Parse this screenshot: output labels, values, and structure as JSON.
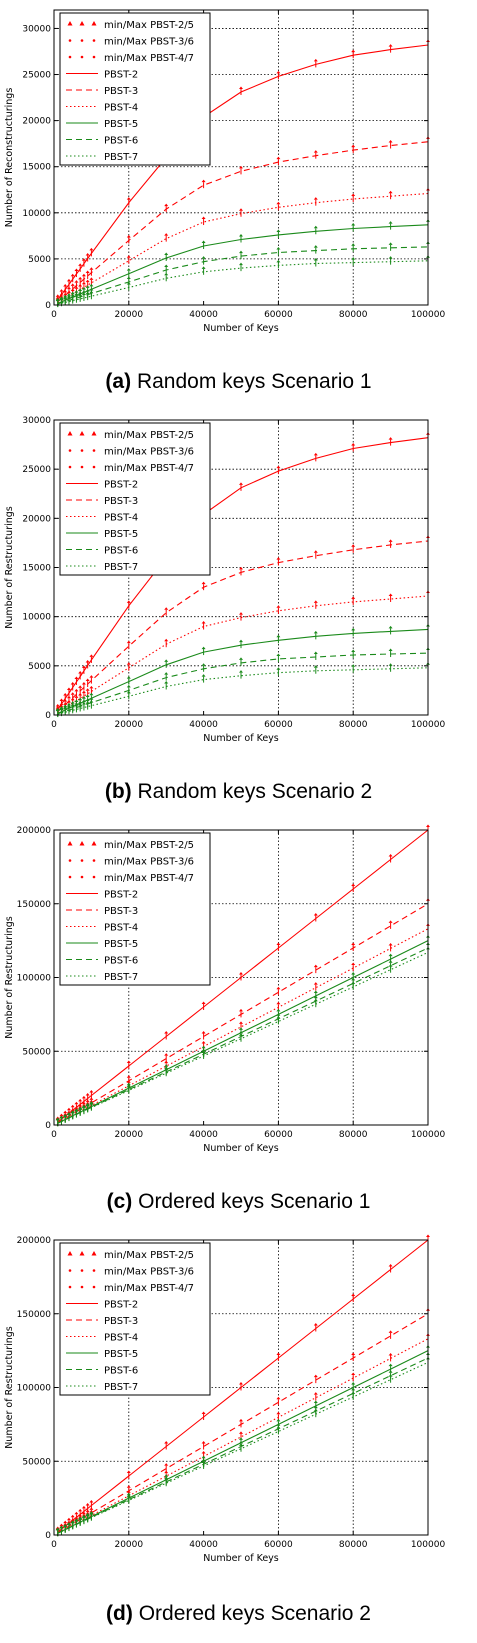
{
  "colors": {
    "red": "#ff0000",
    "green": "#1a8a1a",
    "grid": "#000000"
  },
  "chart_data": [
    {
      "type": "line",
      "caption_label": "(a)",
      "caption_text": "Random keys Scenario 1",
      "xlabel": "Number of Keys",
      "ylabel": "Number of Reconstructurings",
      "xlim": [
        0,
        100000
      ],
      "ylim": [
        0,
        32000
      ],
      "xticks": [
        0,
        20000,
        40000,
        60000,
        80000,
        100000
      ],
      "yticks": [
        0,
        5000,
        10000,
        15000,
        20000,
        25000,
        30000
      ],
      "grid": "dotted at 20000, 60000, 80000 (x) and every y tick",
      "legend_position": "top-left",
      "x": [
        1000,
        2000,
        3000,
        4000,
        5000,
        6000,
        7000,
        8000,
        9000,
        10000,
        20000,
        30000,
        40000,
        50000,
        60000,
        70000,
        80000,
        90000,
        100000
      ],
      "series": [
        {
          "name": "PBST-2",
          "color": "red",
          "dash": "solid",
          "values": [
            560,
            1120,
            1680,
            2240,
            2800,
            3360,
            3920,
            4480,
            5040,
            5600,
            11100,
            16000,
            20400,
            23100,
            24800,
            26100,
            27100,
            27700,
            28200
          ]
        },
        {
          "name": "PBST-3",
          "color": "red",
          "dash": "dashed",
          "values": [
            350,
            700,
            1050,
            1400,
            1750,
            2100,
            2450,
            2800,
            3150,
            3500,
            7000,
            10400,
            13000,
            14500,
            15500,
            16200,
            16800,
            17300,
            17700
          ]
        },
        {
          "name": "PBST-4",
          "color": "red",
          "dash": "dotted",
          "values": [
            240,
            480,
            720,
            960,
            1200,
            1440,
            1680,
            1920,
            2160,
            2400,
            4800,
            7200,
            9000,
            9900,
            10600,
            11100,
            11500,
            11800,
            12100
          ]
        },
        {
          "name": "PBST-5",
          "color": "green",
          "dash": "solid",
          "values": [
            170,
            340,
            510,
            680,
            850,
            1020,
            1190,
            1360,
            1530,
            1700,
            3400,
            5100,
            6400,
            7100,
            7600,
            8000,
            8300,
            8500,
            8700
          ]
        },
        {
          "name": "PBST-6",
          "color": "green",
          "dash": "dashed",
          "values": [
            125,
            250,
            375,
            500,
            625,
            750,
            875,
            1000,
            1125,
            1250,
            2500,
            3800,
            4700,
            5300,
            5700,
            5900,
            6100,
            6200,
            6300
          ]
        },
        {
          "name": "PBST-7",
          "color": "green",
          "dash": "dotted",
          "values": [
            95,
            190,
            285,
            380,
            475,
            570,
            665,
            760,
            855,
            950,
            1900,
            2900,
            3600,
            4000,
            4300,
            4500,
            4600,
            4700,
            4800
          ]
        }
      ],
      "legend": [
        "min/Max PBST-2/5",
        "min/Max PBST-3/6",
        "min/Max PBST-4/7",
        "PBST-2",
        "PBST-3",
        "PBST-4",
        "PBST-5",
        "PBST-6",
        "PBST-7"
      ]
    },
    {
      "type": "line",
      "caption_label": "(b)",
      "caption_text": "Random keys Scenario 2",
      "xlabel": "Number of Keys",
      "ylabel": "Number of Restructurings",
      "xlim": [
        0,
        100000
      ],
      "ylim": [
        0,
        30000
      ],
      "xticks": [
        0,
        20000,
        40000,
        60000,
        80000,
        100000
      ],
      "yticks": [
        0,
        5000,
        10000,
        15000,
        20000,
        25000,
        30000
      ],
      "grid": "dotted at 20000, 60000, 80000 (x) and every y tick",
      "legend_position": "top-left",
      "x": [
        1000,
        2000,
        3000,
        4000,
        5000,
        6000,
        7000,
        8000,
        9000,
        10000,
        20000,
        30000,
        40000,
        50000,
        60000,
        70000,
        80000,
        90000,
        100000
      ],
      "series": [
        {
          "name": "PBST-2",
          "color": "red",
          "dash": "solid",
          "values": [
            560,
            1120,
            1680,
            2240,
            2800,
            3360,
            3920,
            4480,
            5040,
            5600,
            11100,
            16000,
            20400,
            23100,
            24800,
            26100,
            27100,
            27700,
            28200
          ]
        },
        {
          "name": "PBST-3",
          "color": "red",
          "dash": "dashed",
          "values": [
            350,
            700,
            1050,
            1400,
            1750,
            2100,
            2450,
            2800,
            3150,
            3500,
            7000,
            10400,
            13000,
            14500,
            15500,
            16200,
            16800,
            17300,
            17700
          ]
        },
        {
          "name": "PBST-4",
          "color": "red",
          "dash": "dotted",
          "values": [
            240,
            480,
            720,
            960,
            1200,
            1440,
            1680,
            1920,
            2160,
            2400,
            4800,
            7200,
            9000,
            9900,
            10600,
            11100,
            11500,
            11800,
            12100
          ]
        },
        {
          "name": "PBST-5",
          "color": "green",
          "dash": "solid",
          "values": [
            170,
            340,
            510,
            680,
            850,
            1020,
            1190,
            1360,
            1530,
            1700,
            3400,
            5100,
            6400,
            7100,
            7600,
            8000,
            8300,
            8500,
            8700
          ]
        },
        {
          "name": "PBST-6",
          "color": "green",
          "dash": "dashed",
          "values": [
            125,
            250,
            375,
            500,
            625,
            750,
            875,
            1000,
            1125,
            1250,
            2500,
            3800,
            4700,
            5300,
            5700,
            5900,
            6100,
            6200,
            6300
          ]
        },
        {
          "name": "PBST-7",
          "color": "green",
          "dash": "dotted",
          "values": [
            95,
            190,
            285,
            380,
            475,
            570,
            665,
            760,
            855,
            950,
            1900,
            2900,
            3600,
            4000,
            4300,
            4500,
            4600,
            4700,
            4800
          ]
        }
      ],
      "legend": [
        "min/Max PBST-2/5",
        "min/Max PBST-3/6",
        "min/Max PBST-4/7",
        "PBST-2",
        "PBST-3",
        "PBST-4",
        "PBST-5",
        "PBST-6",
        "PBST-7"
      ]
    },
    {
      "type": "line",
      "caption_label": "(c)",
      "caption_text": "Ordered keys Scenario 1",
      "xlabel": "Number of Keys",
      "ylabel": "Number of Restructurings",
      "xlim": [
        0,
        100000
      ],
      "ylim": [
        0,
        200000
      ],
      "xticks": [
        0,
        20000,
        40000,
        60000,
        80000,
        100000
      ],
      "yticks": [
        0,
        50000,
        100000,
        150000,
        200000
      ],
      "grid": "dotted at 20000, 60000, 80000 (x) and every y tick",
      "legend_position": "top-left",
      "x": [
        1000,
        2000,
        3000,
        4000,
        5000,
        6000,
        7000,
        8000,
        9000,
        10000,
        20000,
        30000,
        40000,
        50000,
        60000,
        70000,
        80000,
        90000,
        100000
      ],
      "series": [
        {
          "name": "PBST-2",
          "color": "red",
          "dash": "solid",
          "values": [
            2000,
            4000,
            6000,
            8000,
            10000,
            12000,
            14000,
            16000,
            18000,
            20000,
            40000,
            60000,
            80000,
            100000,
            120000,
            140000,
            160000,
            180000,
            200000
          ]
        },
        {
          "name": "PBST-3",
          "color": "red",
          "dash": "dashed",
          "values": [
            1500,
            3000,
            4500,
            6000,
            7500,
            9000,
            10500,
            12000,
            13500,
            15000,
            30000,
            45000,
            60000,
            75000,
            90000,
            105000,
            120000,
            135000,
            150000
          ]
        },
        {
          "name": "PBST-4",
          "color": "red",
          "dash": "dotted",
          "values": [
            1330,
            2660,
            3990,
            5320,
            6650,
            7980,
            9310,
            10640,
            11970,
            13300,
            26600,
            39900,
            53200,
            66500,
            79800,
            93100,
            106400,
            119700,
            133000
          ]
        },
        {
          "name": "PBST-5",
          "color": "green",
          "dash": "solid",
          "values": [
            1250,
            2500,
            3750,
            5000,
            6250,
            7500,
            8750,
            10000,
            11250,
            12500,
            25000,
            37500,
            50000,
            62500,
            75000,
            87500,
            100000,
            112500,
            125000
          ]
        },
        {
          "name": "PBST-6",
          "color": "green",
          "dash": "dashed",
          "values": [
            1200,
            2400,
            3600,
            4800,
            6000,
            7200,
            8400,
            9600,
            10800,
            12000,
            24000,
            36000,
            48000,
            60000,
            72000,
            84000,
            96000,
            108000,
            120000
          ]
        },
        {
          "name": "PBST-7",
          "color": "green",
          "dash": "dotted",
          "values": [
            1170,
            2340,
            3510,
            4680,
            5850,
            7020,
            8190,
            9360,
            10530,
            11700,
            23400,
            35100,
            46800,
            58500,
            70200,
            81900,
            93600,
            105300,
            117000
          ]
        }
      ],
      "legend": [
        "min/Max PBST-2/5",
        "min/Max PBST-3/6",
        "min/Max PBST-4/7",
        "PBST-2",
        "PBST-3",
        "PBST-4",
        "PBST-5",
        "PBST-6",
        "PBST-7"
      ]
    },
    {
      "type": "line",
      "caption_label": "(d)",
      "caption_text": "Ordered keys Scenario 2",
      "xlabel": "Number of Keys",
      "ylabel": "Number of Restructurings",
      "xlim": [
        0,
        100000
      ],
      "ylim": [
        0,
        200000
      ],
      "xticks": [
        0,
        20000,
        40000,
        60000,
        80000,
        100000
      ],
      "yticks": [
        0,
        50000,
        100000,
        150000,
        200000
      ],
      "grid": "dotted at 20000, 60000, 80000 (x) and every y tick",
      "legend_position": "top-left",
      "x": [
        1000,
        2000,
        3000,
        4000,
        5000,
        6000,
        7000,
        8000,
        9000,
        10000,
        20000,
        30000,
        40000,
        50000,
        60000,
        70000,
        80000,
        90000,
        100000
      ],
      "series": [
        {
          "name": "PBST-2",
          "color": "red",
          "dash": "solid",
          "values": [
            2000,
            4000,
            6000,
            8000,
            10000,
            12000,
            14000,
            16000,
            18000,
            20000,
            40000,
            60000,
            80000,
            100000,
            120000,
            140000,
            160000,
            180000,
            200000
          ]
        },
        {
          "name": "PBST-3",
          "color": "red",
          "dash": "dashed",
          "values": [
            1500,
            3000,
            4500,
            6000,
            7500,
            9000,
            10500,
            12000,
            13500,
            15000,
            30000,
            45000,
            60000,
            75000,
            90000,
            105000,
            120000,
            135000,
            150000
          ]
        },
        {
          "name": "PBST-4",
          "color": "red",
          "dash": "dotted",
          "values": [
            1330,
            2660,
            3990,
            5320,
            6650,
            7980,
            9310,
            10640,
            11970,
            13300,
            26600,
            39900,
            53200,
            66500,
            79800,
            93100,
            106400,
            119700,
            133000
          ]
        },
        {
          "name": "PBST-5",
          "color": "green",
          "dash": "solid",
          "values": [
            1250,
            2500,
            3750,
            5000,
            6250,
            7500,
            8750,
            10000,
            11250,
            12500,
            25000,
            37500,
            50000,
            62500,
            75000,
            87500,
            100000,
            112500,
            125000
          ]
        },
        {
          "name": "PBST-6",
          "color": "green",
          "dash": "dashed",
          "values": [
            1200,
            2400,
            3600,
            4800,
            6000,
            7200,
            8400,
            9600,
            10800,
            12000,
            24000,
            36000,
            48000,
            60000,
            72000,
            84000,
            96000,
            108000,
            120000
          ]
        },
        {
          "name": "PBST-7",
          "color": "green",
          "dash": "dotted",
          "values": [
            1170,
            2340,
            3510,
            4680,
            5850,
            7020,
            8190,
            9360,
            10530,
            11700,
            23400,
            35100,
            46800,
            58500,
            70200,
            81900,
            93600,
            105300,
            117000
          ]
        }
      ],
      "legend": [
        "min/Max PBST-2/5",
        "min/Max PBST-3/6",
        "min/Max PBST-4/7",
        "PBST-2",
        "PBST-3",
        "PBST-4",
        "PBST-5",
        "PBST-6",
        "PBST-7"
      ]
    }
  ]
}
